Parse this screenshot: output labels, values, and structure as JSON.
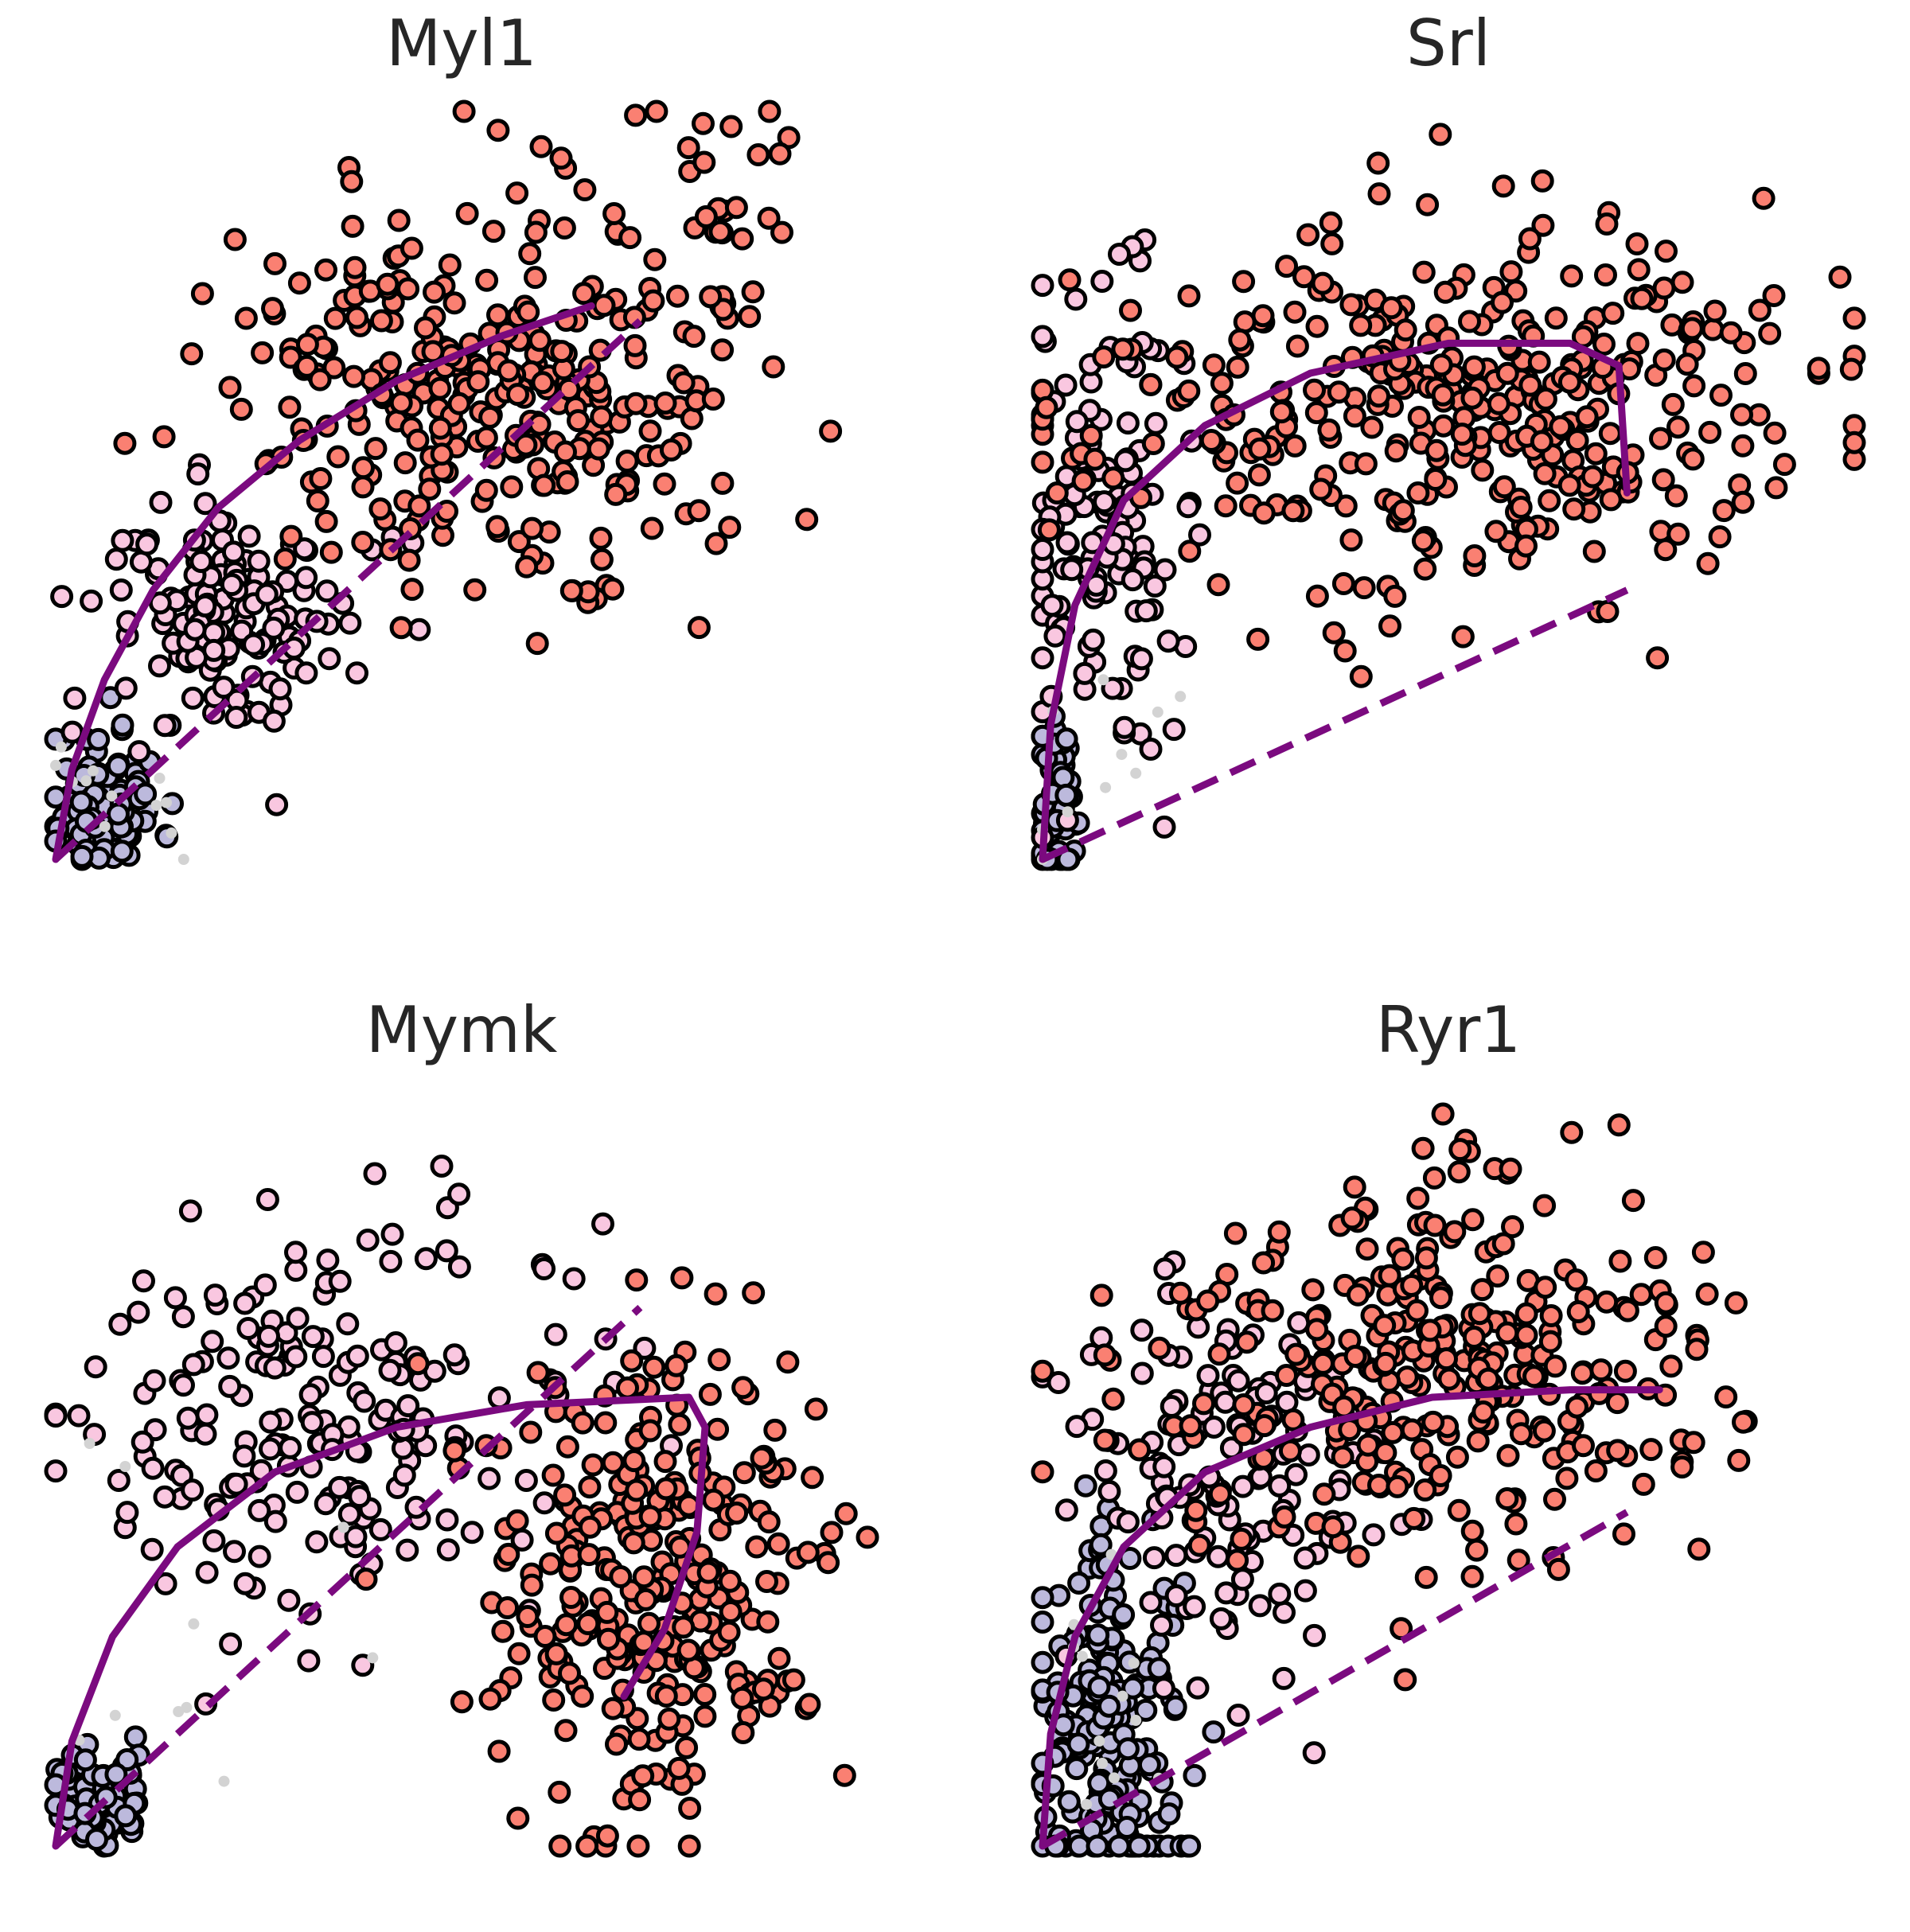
{
  "palette": {
    "curve": "#7b0a7f",
    "outline": "#000000",
    "progenitor": "#bcb9dc",
    "myoblast": "#f9c7e0",
    "myocyte": "#fa8072",
    "unfiltered": "#d3d3d3"
  },
  "chart_data": [
    {
      "type": "scatter",
      "title": "Myl1",
      "xlabel": "",
      "ylabel": "",
      "grid": false,
      "axes_visible": false,
      "xlim": [
        0,
        1
      ],
      "ylim": [
        0,
        1
      ],
      "steady_state_slope": 1.0,
      "trajectory": [
        [
          0,
          0
        ],
        [
          0.02,
          0.12
        ],
        [
          0.06,
          0.24
        ],
        [
          0.12,
          0.36
        ],
        [
          0.2,
          0.47
        ],
        [
          0.3,
          0.56
        ],
        [
          0.42,
          0.64
        ],
        [
          0.55,
          0.7
        ],
        [
          0.66,
          0.74
        ]
      ],
      "clusters": [
        {
          "name": "progenitor",
          "cx": 0.06,
          "cy": 0.08,
          "sx": 0.035,
          "sy": 0.05,
          "n": 90,
          "outline": true,
          "seed": 11
        },
        {
          "name": "myoblast",
          "cx": 0.22,
          "cy": 0.32,
          "sx": 0.08,
          "sy": 0.08,
          "n": 140,
          "outline": true,
          "seed": 12
        },
        {
          "name": "myocyte",
          "cx": 0.55,
          "cy": 0.62,
          "sx": 0.16,
          "sy": 0.13,
          "n": 330,
          "outline": true,
          "seed": 13
        },
        {
          "name": "myocyte",
          "cx": 0.86,
          "cy": 0.92,
          "sx": 0.05,
          "sy": 0.06,
          "n": 20,
          "outline": true,
          "seed": 14
        },
        {
          "name": "unfiltered",
          "cx": 0.1,
          "cy": 0.1,
          "sx": 0.05,
          "sy": 0.05,
          "n": 12,
          "outline": false,
          "seed": 15
        }
      ]
    },
    {
      "type": "scatter",
      "title": "Srl",
      "xlabel": "",
      "ylabel": "",
      "grid": false,
      "axes_visible": false,
      "xlim": [
        0,
        1
      ],
      "ylim": [
        0,
        1
      ],
      "steady_state_slope": 0.5,
      "trajectory": [
        [
          0,
          0
        ],
        [
          0.01,
          0.18
        ],
        [
          0.04,
          0.34
        ],
        [
          0.1,
          0.48
        ],
        [
          0.2,
          0.58
        ],
        [
          0.33,
          0.65
        ],
        [
          0.5,
          0.69
        ],
        [
          0.65,
          0.69
        ],
        [
          0.71,
          0.66
        ],
        [
          0.72,
          0.49
        ]
      ],
      "clusters": [
        {
          "name": "progenitor",
          "cx": 0.02,
          "cy": 0.06,
          "sx": 0.015,
          "sy": 0.06,
          "n": 60,
          "outline": true,
          "seed": 21
        },
        {
          "name": "myoblast",
          "cx": 0.07,
          "cy": 0.45,
          "sx": 0.05,
          "sy": 0.15,
          "n": 130,
          "outline": true,
          "seed": 22
        },
        {
          "name": "myocyte",
          "cx": 0.5,
          "cy": 0.6,
          "sx": 0.22,
          "sy": 0.12,
          "n": 380,
          "outline": true,
          "seed": 23
        },
        {
          "name": "unfiltered",
          "cx": 0.05,
          "cy": 0.1,
          "sx": 0.06,
          "sy": 0.1,
          "n": 10,
          "outline": false,
          "seed": 24
        }
      ]
    },
    {
      "type": "scatter",
      "title": "Mymk",
      "xlabel": "",
      "ylabel": "",
      "grid": false,
      "axes_visible": false,
      "xlim": [
        0,
        1
      ],
      "ylim": [
        0,
        1
      ],
      "steady_state_slope": 1.0,
      "trajectory": [
        [
          0,
          0
        ],
        [
          0.02,
          0.14
        ],
        [
          0.07,
          0.28
        ],
        [
          0.15,
          0.4
        ],
        [
          0.27,
          0.5
        ],
        [
          0.42,
          0.56
        ],
        [
          0.58,
          0.59
        ],
        [
          0.78,
          0.6
        ],
        [
          0.8,
          0.56
        ],
        [
          0.79,
          0.42
        ],
        [
          0.75,
          0.29
        ],
        [
          0.7,
          0.2
        ]
      ],
      "clusters": [
        {
          "name": "progenitor",
          "cx": 0.05,
          "cy": 0.06,
          "sx": 0.03,
          "sy": 0.035,
          "n": 70,
          "outline": true,
          "seed": 31
        },
        {
          "name": "myoblast",
          "cx": 0.3,
          "cy": 0.58,
          "sx": 0.17,
          "sy": 0.14,
          "n": 200,
          "outline": true,
          "seed": 32
        },
        {
          "name": "myocyte",
          "cx": 0.74,
          "cy": 0.35,
          "sx": 0.1,
          "sy": 0.15,
          "n": 300,
          "outline": true,
          "seed": 33
        },
        {
          "name": "unfiltered",
          "cx": 0.15,
          "cy": 0.25,
          "sx": 0.1,
          "sy": 0.15,
          "n": 10,
          "outline": false,
          "seed": 34
        }
      ]
    },
    {
      "type": "scatter",
      "title": "Ryr1",
      "xlabel": "",
      "ylabel": "",
      "grid": false,
      "axes_visible": false,
      "xlim": [
        0,
        1
      ],
      "ylim": [
        0,
        1
      ],
      "steady_state_slope": 0.62,
      "trajectory": [
        [
          0,
          0
        ],
        [
          0.01,
          0.15
        ],
        [
          0.04,
          0.28
        ],
        [
          0.1,
          0.4
        ],
        [
          0.2,
          0.5
        ],
        [
          0.33,
          0.56
        ],
        [
          0.48,
          0.6
        ],
        [
          0.65,
          0.61
        ],
        [
          0.76,
          0.61
        ]
      ],
      "clusters": [
        {
          "name": "progenitor",
          "cx": 0.08,
          "cy": 0.16,
          "sx": 0.05,
          "sy": 0.12,
          "n": 200,
          "outline": true,
          "seed": 41
        },
        {
          "name": "myoblast",
          "cx": 0.22,
          "cy": 0.5,
          "sx": 0.1,
          "sy": 0.14,
          "n": 140,
          "outline": true,
          "seed": 42
        },
        {
          "name": "myocyte",
          "cx": 0.48,
          "cy": 0.64,
          "sx": 0.18,
          "sy": 0.13,
          "n": 320,
          "outline": true,
          "seed": 43
        },
        {
          "name": "unfiltered",
          "cx": 0.08,
          "cy": 0.15,
          "sx": 0.05,
          "sy": 0.1,
          "n": 12,
          "outline": false,
          "seed": 44
        }
      ]
    }
  ]
}
